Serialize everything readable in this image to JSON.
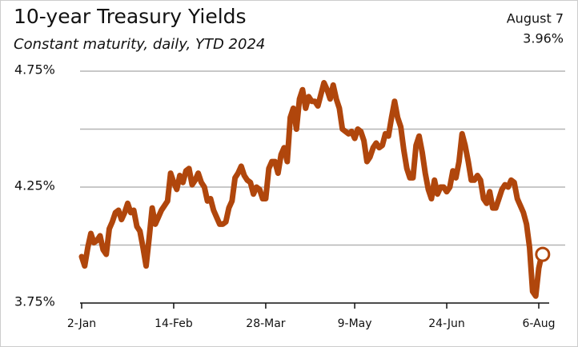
{
  "chart_data": {
    "type": "line",
    "title": "10-year Treasury Yields",
    "subtitle": "Constant maturity, daily, YTD 2024",
    "annotation": {
      "text": "August 7",
      "value": 3.96,
      "value_label": "3.96%"
    },
    "color": "#b0460c",
    "categories": [
      "2-Jan",
      null,
      null,
      null,
      null,
      null,
      null,
      null,
      null,
      null,
      null,
      null,
      null,
      null,
      null,
      null,
      null,
      null,
      null,
      null,
      null,
      null,
      null,
      null,
      null,
      null,
      null,
      null,
      null,
      null,
      "14-Feb",
      null,
      null,
      null,
      null,
      null,
      null,
      null,
      null,
      null,
      null,
      null,
      null,
      null,
      null,
      null,
      null,
      null,
      null,
      null,
      null,
      null,
      null,
      null,
      null,
      null,
      null,
      null,
      null,
      null,
      "28-Mar",
      null,
      null,
      null,
      null,
      null,
      null,
      null,
      null,
      null,
      null,
      null,
      null,
      null,
      null,
      null,
      null,
      null,
      null,
      null,
      null,
      null,
      null,
      null,
      null,
      null,
      null,
      null,
      null,
      "9-May",
      null,
      null,
      null,
      null,
      null,
      null,
      null,
      null,
      null,
      null,
      null,
      null,
      null,
      null,
      null,
      null,
      null,
      null,
      null,
      null,
      null,
      null,
      null,
      null,
      null,
      null,
      null,
      null,
      null,
      "24-Jun",
      null,
      null,
      null,
      null,
      null,
      null,
      null,
      null,
      null,
      null,
      null,
      null,
      null,
      null,
      null,
      null,
      null,
      null,
      null,
      null,
      null,
      null,
      null,
      null,
      null,
      null,
      null,
      null,
      null,
      "6-Aug",
      null
    ],
    "values": [
      3.95,
      3.91,
      3.99,
      4.05,
      4.01,
      4.02,
      4.04,
      3.98,
      3.96,
      4.07,
      4.1,
      4.14,
      4.15,
      4.11,
      4.14,
      4.18,
      4.14,
      4.15,
      4.08,
      4.06,
      3.99,
      3.91,
      4.03,
      4.16,
      4.09,
      4.12,
      4.15,
      4.17,
      4.19,
      4.31,
      4.27,
      4.24,
      4.3,
      4.27,
      4.32,
      4.33,
      4.26,
      4.28,
      4.31,
      4.27,
      4.25,
      4.19,
      4.2,
      4.15,
      4.12,
      4.09,
      4.09,
      4.1,
      4.16,
      4.19,
      4.29,
      4.31,
      4.34,
      4.3,
      4.28,
      4.27,
      4.22,
      4.25,
      4.24,
      4.2,
      4.2,
      4.33,
      4.36,
      4.36,
      4.31,
      4.39,
      4.42,
      4.36,
      4.55,
      4.59,
      4.5,
      4.63,
      4.67,
      4.59,
      4.64,
      4.62,
      4.62,
      4.6,
      4.65,
      4.7,
      4.67,
      4.63,
      4.69,
      4.63,
      4.59,
      4.5,
      4.49,
      4.48,
      4.49,
      4.46,
      4.5,
      4.49,
      4.45,
      4.36,
      4.38,
      4.42,
      4.44,
      4.42,
      4.43,
      4.48,
      4.47,
      4.55,
      4.62,
      4.55,
      4.51,
      4.41,
      4.33,
      4.29,
      4.29,
      4.43,
      4.47,
      4.4,
      4.31,
      4.24,
      4.2,
      4.28,
      4.22,
      4.25,
      4.25,
      4.23,
      4.25,
      4.32,
      4.29,
      4.36,
      4.48,
      4.43,
      4.36,
      4.28,
      4.28,
      4.3,
      4.28,
      4.2,
      4.18,
      4.23,
      4.16,
      4.16,
      4.2,
      4.24,
      4.26,
      4.25,
      4.28,
      4.27,
      4.2,
      4.17,
      4.14,
      4.09,
      3.99,
      3.8,
      3.78,
      3.9,
      3.96
    ],
    "ylim": [
      3.75,
      4.75
    ],
    "yticks": [
      {
        "value": 4.75,
        "label": "4.75%"
      },
      {
        "value": 4.25,
        "label": "4.25%"
      },
      {
        "value": 3.75,
        "label": "3.75%"
      }
    ],
    "minor_yticks": [
      4.5,
      4.0
    ],
    "grid": true
  }
}
